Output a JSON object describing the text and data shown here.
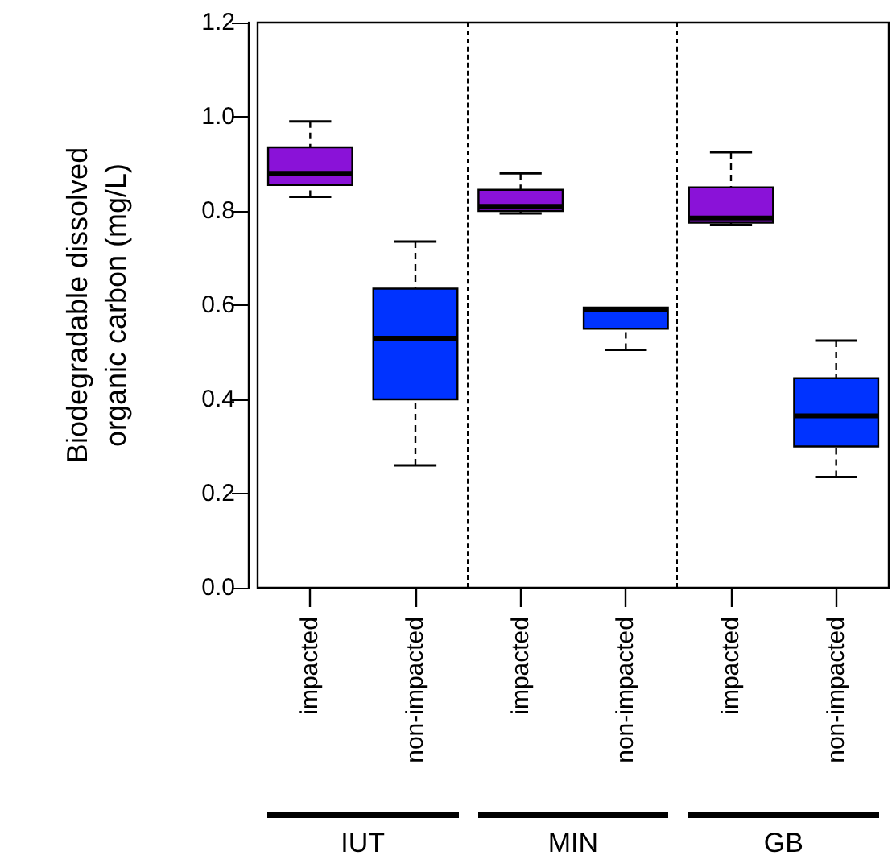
{
  "chart_data": {
    "type": "box",
    "ylabel": "Biodegradable dissolved organic carbon (mg/L)",
    "categories": [
      "impacted",
      "non-impacted",
      "impacted",
      "non-impacted",
      "impacted",
      "non-impacted"
    ],
    "colors": [
      "#8a12d8",
      "#0033ff",
      "#8a12d8",
      "#0033ff",
      "#8a12d8",
      "#0033ff"
    ],
    "boxes": [
      {
        "low": 0.83,
        "q1": 0.855,
        "median": 0.88,
        "q3": 0.935,
        "high": 0.99
      },
      {
        "low": 0.26,
        "q1": 0.4,
        "median": 0.53,
        "q3": 0.635,
        "high": 0.735
      },
      {
        "low": 0.795,
        "q1": 0.8,
        "median": 0.81,
        "q3": 0.845,
        "high": 0.88
      },
      {
        "low": 0.505,
        "q1": 0.55,
        "median": 0.59,
        "q3": 0.595,
        "high": 0.595
      },
      {
        "low": 0.77,
        "q1": 0.775,
        "median": 0.785,
        "q3": 0.85,
        "high": 0.925
      },
      {
        "low": 0.235,
        "q1": 0.3,
        "median": 0.365,
        "q3": 0.445,
        "high": 0.525
      }
    ],
    "ylim": [
      0,
      1.2
    ],
    "yticks": [
      {
        "value": 0,
        "label": "0.0"
      },
      {
        "value": 0.2,
        "label": "0.2"
      },
      {
        "value": 0.4,
        "label": "0.4"
      },
      {
        "value": 0.6,
        "label": "0.6"
      },
      {
        "value": 0.8,
        "label": "0.8"
      },
      {
        "value": 1,
        "label": "1.0"
      },
      {
        "value": 1.2,
        "label": "1.2"
      }
    ],
    "annotations": [
      "IUT",
      "MIN",
      "GB"
    ],
    "grid": false
  }
}
